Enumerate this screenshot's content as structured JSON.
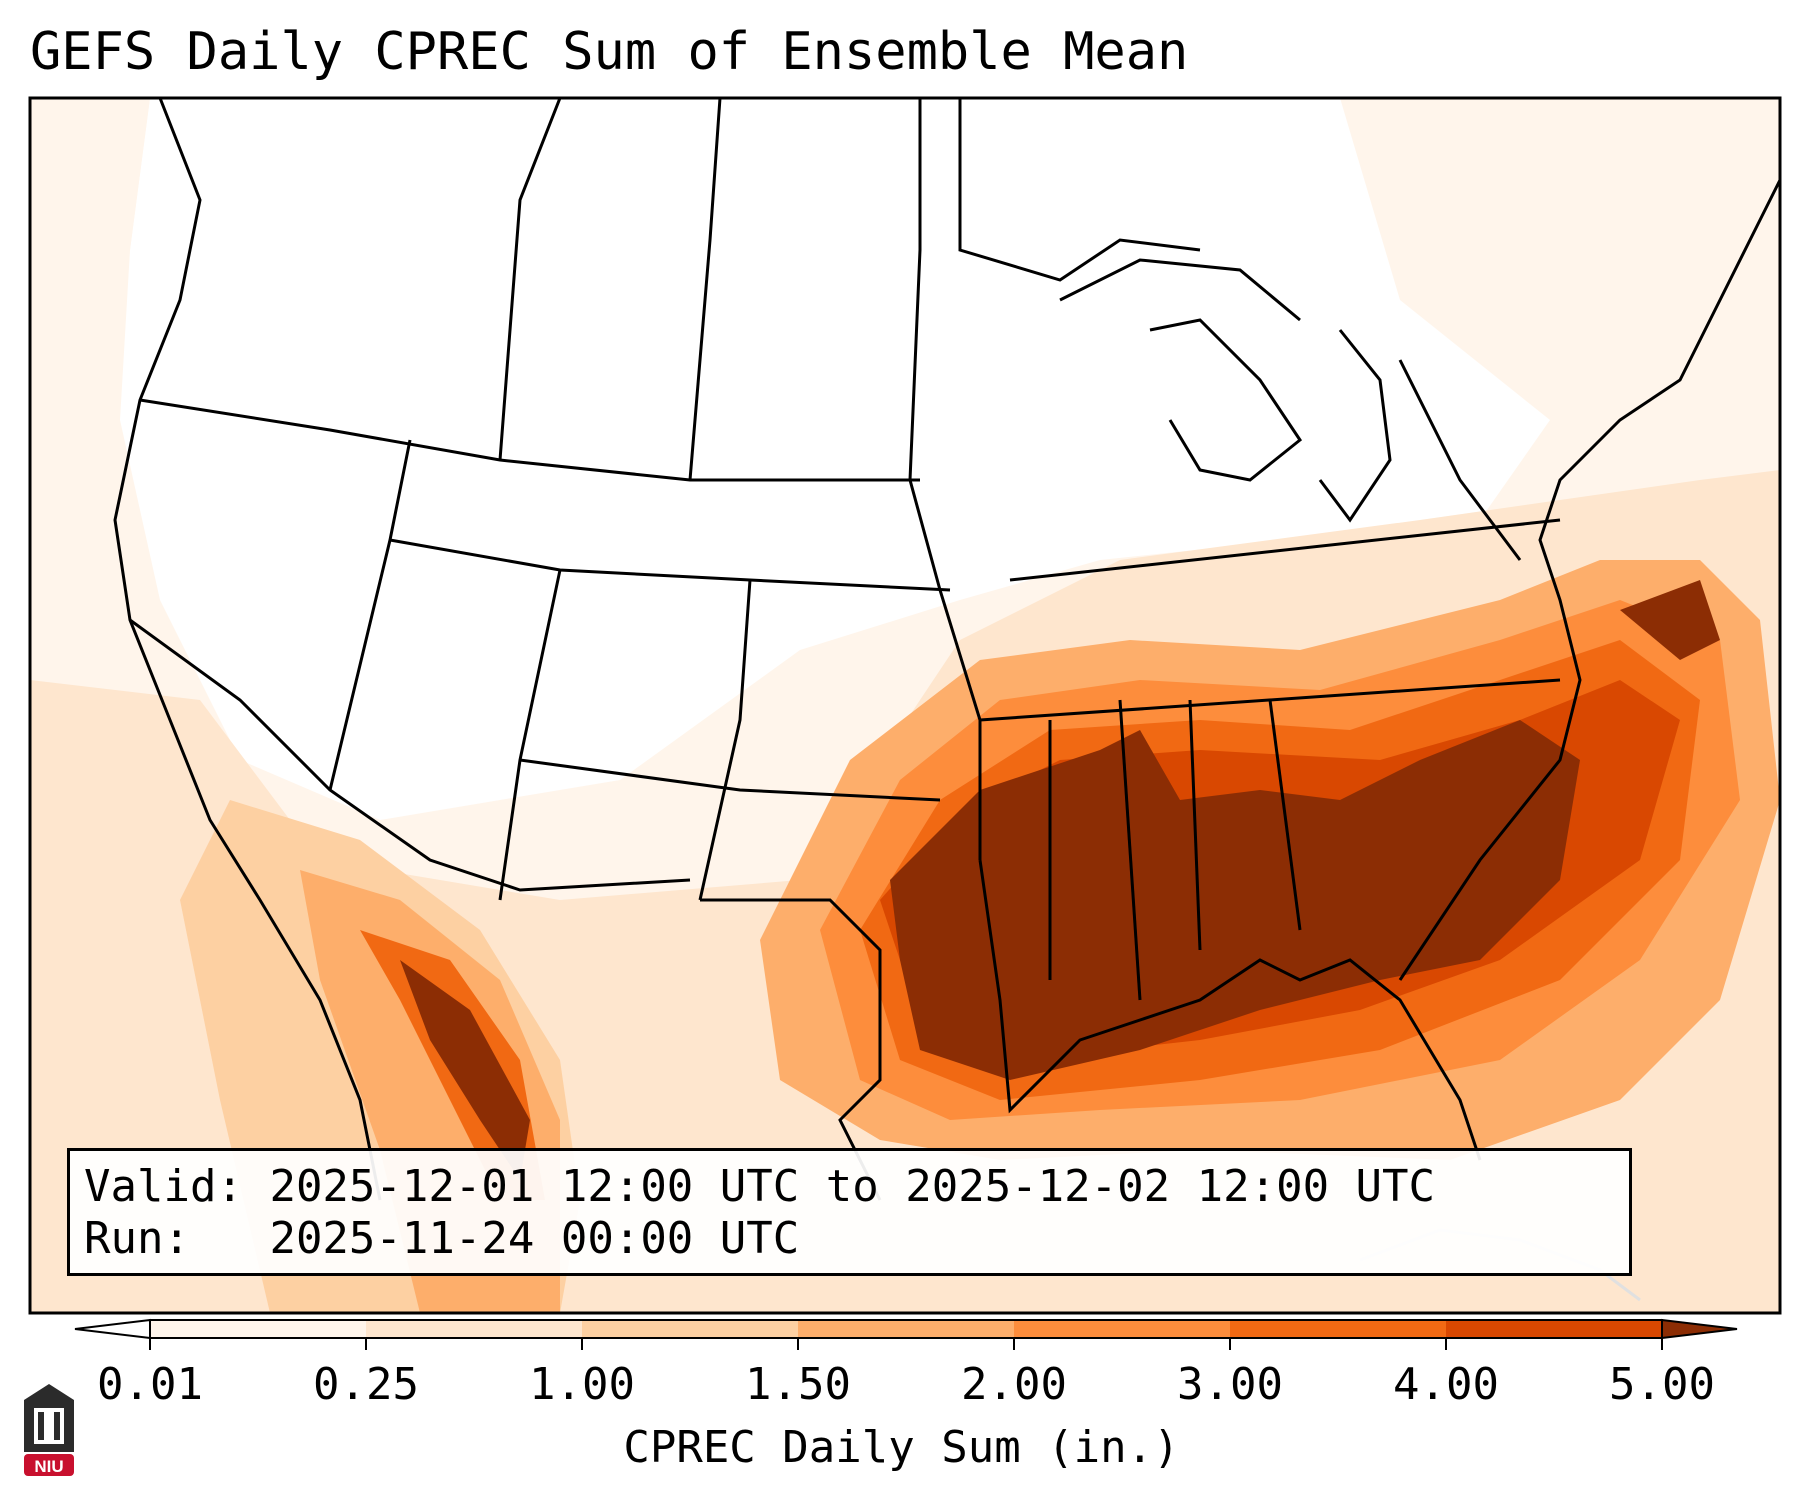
{
  "title": "GEFS Daily CPREC Sum of Ensemble Mean",
  "info": {
    "valid_label": "Valid:",
    "valid_value": "2025-12-01 12:00 UTC to 2025-12-02 12:00 UTC",
    "run_label": "Run:",
    "run_value": "2025-11-24 00:00 UTC"
  },
  "colorbar": {
    "label": "CPREC Daily Sum (in.)",
    "ticks": [
      "0.01",
      "0.25",
      "1.00",
      "1.50",
      "2.00",
      "3.00",
      "4.00",
      "5.00"
    ],
    "colors": [
      "#fff5eb",
      "#fee6ce",
      "#fdd0a2",
      "#fdae6b",
      "#fd8d3c",
      "#f16913",
      "#d94801"
    ],
    "under_color": "#ffffff",
    "over_color": "#8c2d04"
  },
  "logo": {
    "text": "NIU",
    "color": "#c8102e"
  }
}
